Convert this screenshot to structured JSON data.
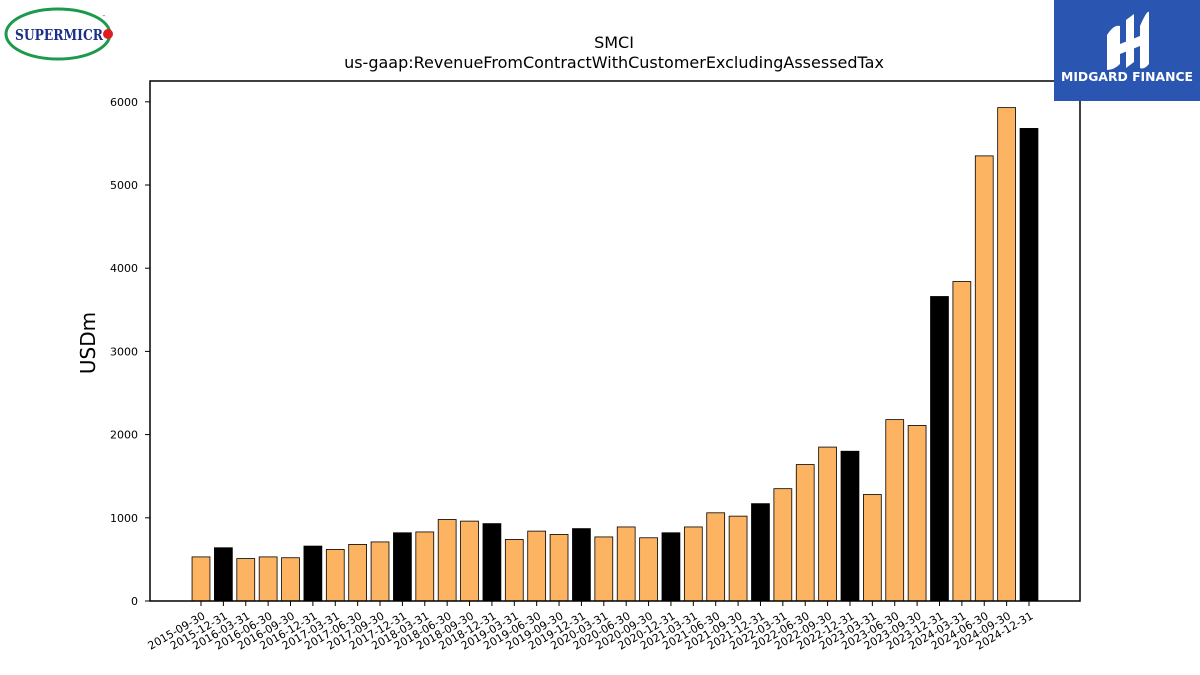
{
  "logos": {
    "left": {
      "text": "SUPERMICR",
      "tm": "™",
      "colors": {
        "ring": "#1a9a4a",
        "text": "#1b2f86",
        "dot": "#e11b22"
      }
    },
    "right": {
      "text": "MIDGARD FINANCE",
      "colors": {
        "bg": "#2a55b0",
        "fg": "#ffffff"
      }
    }
  },
  "colors": {
    "quarterly": "#fdb462",
    "annual": "#000000",
    "edge": "#000000"
  },
  "chart_data": {
    "type": "bar",
    "title": "SMCI",
    "subtitle": "us-gaap:RevenueFromContractWithCustomerExcludingAssessedTax",
    "xlabel": "",
    "ylabel": "USDm",
    "ylim": [
      0,
      6250
    ],
    "yticks": [
      0,
      1000,
      2000,
      3000,
      4000,
      5000,
      6000
    ],
    "grid": false,
    "categories": [
      "2015-09-30",
      "2015-12-31",
      "2016-03-31",
      "2016-06-30",
      "2016-09-30",
      "2016-12-31",
      "2017-03-31",
      "2017-06-30",
      "2017-09-30",
      "2017-12-31",
      "2018-03-31",
      "2018-06-30",
      "2018-09-30",
      "2018-12-31",
      "2019-03-31",
      "2019-06-30",
      "2019-09-30",
      "2019-12-31",
      "2020-03-31",
      "2020-06-30",
      "2020-09-30",
      "2020-12-31",
      "2021-03-31",
      "2021-06-30",
      "2021-09-30",
      "2021-12-31",
      "2022-03-31",
      "2022-06-30",
      "2022-09-30",
      "2022-12-31",
      "2023-03-31",
      "2023-06-30",
      "2023-09-30",
      "2023-12-31",
      "2024-03-31",
      "2024-06-30",
      "2024-09-30",
      "2024-12-31"
    ],
    "values": [
      530,
      640,
      510,
      530,
      520,
      660,
      620,
      680,
      710,
      820,
      830,
      980,
      960,
      930,
      740,
      840,
      800,
      870,
      770,
      890,
      760,
      820,
      890,
      1060,
      1020,
      1170,
      1350,
      1640,
      1850,
      1800,
      1280,
      2180,
      2110,
      3660,
      3840,
      5350,
      5930,
      5680
    ],
    "bar_kinds": [
      "q",
      "a",
      "q",
      "q",
      "q",
      "a",
      "q",
      "q",
      "q",
      "a",
      "q",
      "q",
      "q",
      "a",
      "q",
      "q",
      "q",
      "a",
      "q",
      "q",
      "q",
      "a",
      "q",
      "q",
      "q",
      "a",
      "q",
      "q",
      "q",
      "a",
      "q",
      "q",
      "q",
      "a",
      "q",
      "q",
      "q",
      "a"
    ]
  }
}
